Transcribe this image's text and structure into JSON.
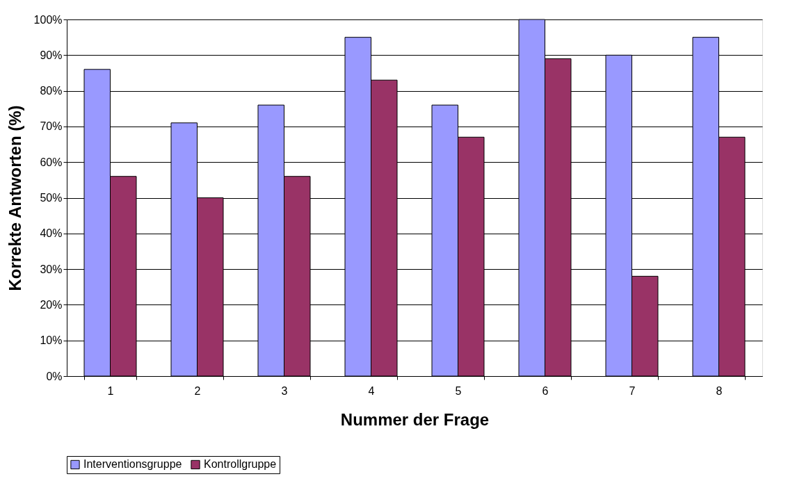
{
  "chart_data": {
    "type": "bar",
    "xlabel": "Nummer der Frage",
    "ylabel": "Korrekte Antworten (%)",
    "categories": [
      "1",
      "2",
      "3",
      "4",
      "5",
      "6",
      "7",
      "8"
    ],
    "series": [
      {
        "name": "Interventionsgruppe",
        "color": "#9999ff",
        "values": [
          86,
          71,
          76,
          95,
          76,
          100,
          90,
          95
        ]
      },
      {
        "name": "Kontrollgruppe",
        "color": "#993366",
        "values": [
          56,
          50,
          56,
          83,
          67,
          89,
          28,
          67
        ]
      }
    ],
    "ylim": [
      0,
      100
    ],
    "yticks": [
      {
        "value": 0,
        "label": "0%"
      },
      {
        "value": 10,
        "label": "10%"
      },
      {
        "value": 20,
        "label": "20%"
      },
      {
        "value": 30,
        "label": "30%"
      },
      {
        "value": 40,
        "label": "40%"
      },
      {
        "value": 50,
        "label": "50%"
      },
      {
        "value": 60,
        "label": "60%"
      },
      {
        "value": 70,
        "label": "70%"
      },
      {
        "value": 80,
        "label": "80%"
      },
      {
        "value": 90,
        "label": "90%"
      },
      {
        "value": 100,
        "label": "100%"
      }
    ],
    "grid": "y",
    "legend": "bottom"
  }
}
